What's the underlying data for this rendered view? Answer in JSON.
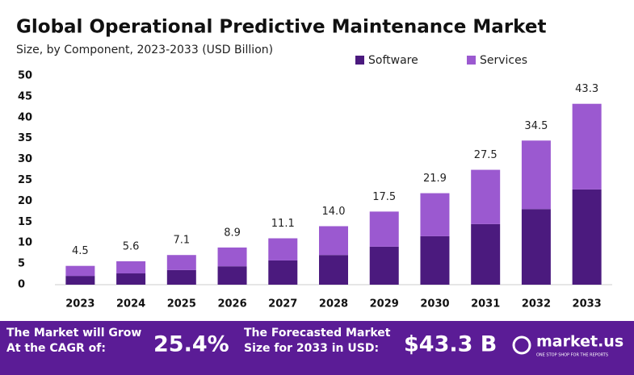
{
  "chart_data": {
    "type": "stacked_bar",
    "title": "Global Operational Predictive Maintenance Market",
    "subtitle": "Size, by Component, 2023-2033 (USD Billion)",
    "categories": [
      "2023",
      "2024",
      "2025",
      "2026",
      "2027",
      "2028",
      "2029",
      "2030",
      "2031",
      "2032",
      "2033"
    ],
    "series": [
      {
        "name": "Software",
        "color": "#4b1a7e",
        "values": [
          2.1,
          2.7,
          3.5,
          4.4,
          5.8,
          7.1,
          9.1,
          11.6,
          14.5,
          18.1,
          22.8
        ]
      },
      {
        "name": "Services",
        "color": "#9b59d0",
        "values": [
          2.4,
          2.9,
          3.6,
          4.5,
          5.3,
          6.9,
          8.4,
          10.3,
          13.0,
          16.4,
          20.5
        ]
      }
    ],
    "totals": [
      4.5,
      5.6,
      7.1,
      8.9,
      11.1,
      14.0,
      17.5,
      21.9,
      27.5,
      34.5,
      43.3
    ],
    "totals_labels": [
      "4.5",
      "5.6",
      "7.1",
      "8.9",
      "11.1",
      "14.0",
      "17.5",
      "21.9",
      "27.5",
      "34.5",
      "43.3"
    ],
    "ylim": [
      0,
      50
    ],
    "yticks": [
      0,
      5,
      10,
      15,
      20,
      25,
      30,
      35,
      40,
      45,
      50
    ],
    "grid": false,
    "legend": "top-right"
  },
  "footer": {
    "cagr_text": "The Market will Grow At the CAGR of:",
    "cagr": "25.4%",
    "forecast_text": "The Forecasted Market Size for 2033 in USD:",
    "forecast": "$43.3 B",
    "brand": "market.us",
    "tagline": "ONE STOP SHOP FOR THE REPORTS"
  }
}
